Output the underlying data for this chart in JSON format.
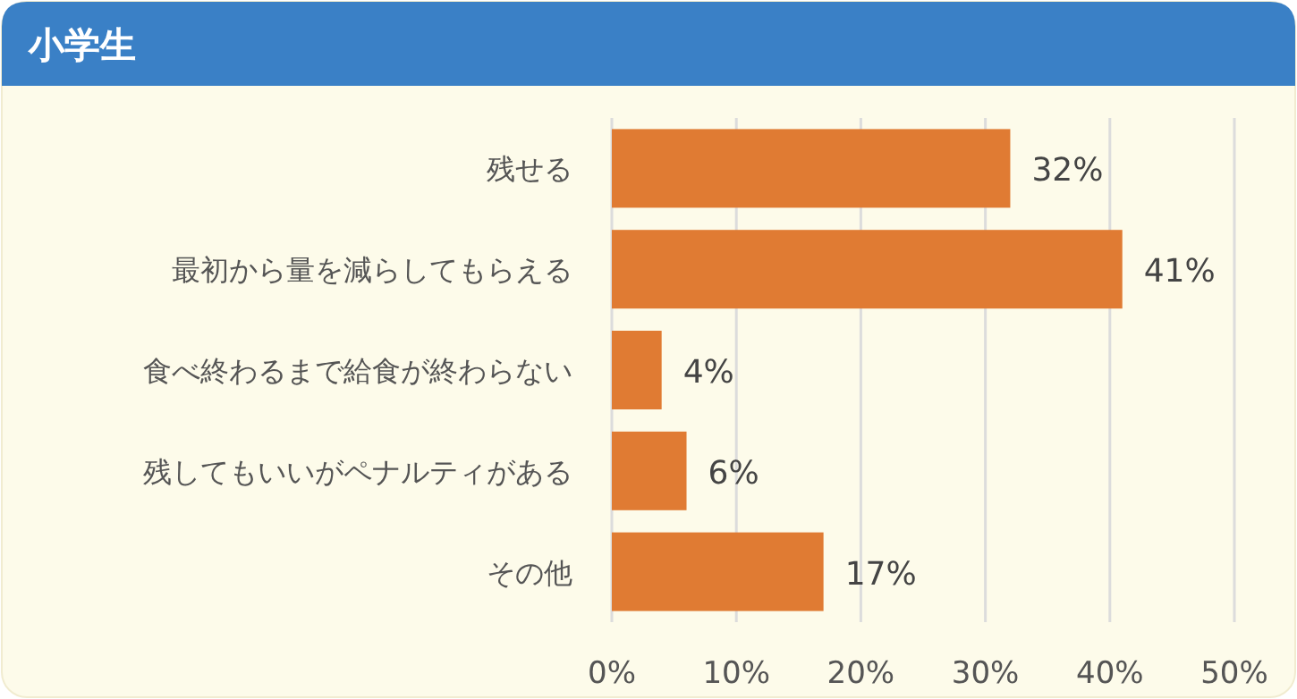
{
  "chart_data": {
    "type": "bar",
    "orientation": "horizontal",
    "title": "小学生",
    "categories": [
      "残せる",
      "最初から量を減らしてもらえる",
      "食べ終わるまで給食が終わらない",
      "残してもいいがペナルティがある",
      "その他"
    ],
    "values": [
      32,
      41,
      4,
      6,
      17
    ],
    "value_labels": [
      "32%",
      "41%",
      "4%",
      "6%",
      "17%"
    ],
    "color": "#e07b33",
    "xlim": [
      0,
      50
    ],
    "xticks": [
      {
        "value": 0,
        "label": "0%"
      },
      {
        "value": 10,
        "label": "10%"
      },
      {
        "value": 20,
        "label": "20%"
      },
      {
        "value": 30,
        "label": "30%"
      },
      {
        "value": 40,
        "label": "40%"
      },
      {
        "value": 50,
        "label": "50%"
      }
    ],
    "grid": "x"
  }
}
